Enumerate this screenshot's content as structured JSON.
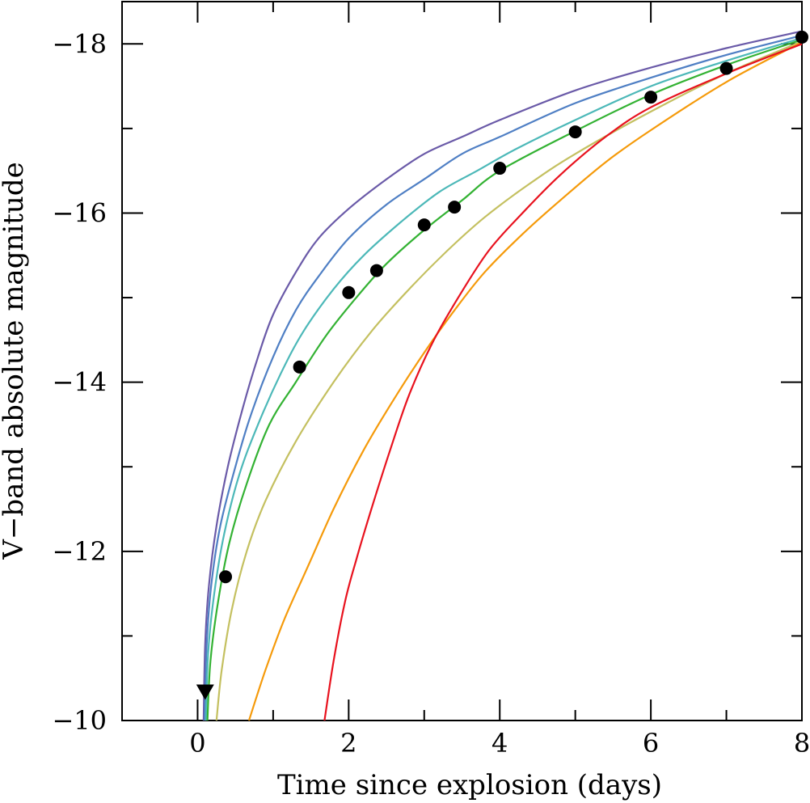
{
  "chart_data": {
    "type": "line",
    "xlabel": "Time since explosion (days)",
    "ylabel": "V−band absolute magnitude",
    "xlim": [
      -1,
      8
    ],
    "ylim": [
      -10,
      -18.5
    ],
    "y_inverted": true,
    "x_ticks": [
      0,
      2,
      4,
      6,
      8
    ],
    "x_tick_labels": [
      "0",
      "2",
      "4",
      "6",
      "8"
    ],
    "y_ticks": [
      -10,
      -12,
      -14,
      -16,
      -18
    ],
    "y_tick_labels": [
      "−10",
      "−12",
      "−14",
      "−16",
      "−18"
    ],
    "grid": false,
    "series": [
      {
        "color": "#6a5aa8",
        "points": [
          [
            0.08,
            -10.0
          ],
          [
            0.1,
            -10.9
          ],
          [
            0.15,
            -11.6
          ],
          [
            0.25,
            -12.3
          ],
          [
            0.4,
            -13.0
          ],
          [
            0.6,
            -13.7
          ],
          [
            0.8,
            -14.3
          ],
          [
            1.0,
            -14.8
          ],
          [
            1.3,
            -15.3
          ],
          [
            1.6,
            -15.7
          ],
          [
            2.0,
            -16.05
          ],
          [
            2.5,
            -16.4
          ],
          [
            3.0,
            -16.7
          ],
          [
            3.5,
            -16.9
          ],
          [
            4.0,
            -17.1
          ],
          [
            5.0,
            -17.45
          ],
          [
            6.0,
            -17.72
          ],
          [
            7.0,
            -17.95
          ],
          [
            8.0,
            -18.15
          ]
        ]
      },
      {
        "color": "#4f7fc4",
        "points": [
          [
            0.09,
            -10.0
          ],
          [
            0.12,
            -10.9
          ],
          [
            0.18,
            -11.6
          ],
          [
            0.3,
            -12.3
          ],
          [
            0.5,
            -13.0
          ],
          [
            0.7,
            -13.6
          ],
          [
            1.0,
            -14.3
          ],
          [
            1.3,
            -14.85
          ],
          [
            1.6,
            -15.25
          ],
          [
            2.0,
            -15.7
          ],
          [
            2.5,
            -16.1
          ],
          [
            3.0,
            -16.4
          ],
          [
            3.5,
            -16.7
          ],
          [
            4.0,
            -16.9
          ],
          [
            5.0,
            -17.3
          ],
          [
            6.0,
            -17.6
          ],
          [
            7.0,
            -17.87
          ],
          [
            8.0,
            -18.1
          ]
        ]
      },
      {
        "color": "#4cb8b8",
        "points": [
          [
            0.11,
            -10.0
          ],
          [
            0.14,
            -10.8
          ],
          [
            0.22,
            -11.5
          ],
          [
            0.35,
            -12.2
          ],
          [
            0.55,
            -12.9
          ],
          [
            0.8,
            -13.5
          ],
          [
            1.1,
            -14.1
          ],
          [
            1.4,
            -14.6
          ],
          [
            1.8,
            -15.1
          ],
          [
            2.2,
            -15.5
          ],
          [
            2.7,
            -15.9
          ],
          [
            3.2,
            -16.25
          ],
          [
            3.7,
            -16.5
          ],
          [
            4.2,
            -16.75
          ],
          [
            5.0,
            -17.1
          ],
          [
            6.0,
            -17.5
          ],
          [
            7.0,
            -17.8
          ],
          [
            8.0,
            -18.07
          ]
        ]
      },
      {
        "color": "#33b233",
        "points": [
          [
            0.13,
            -10.0
          ],
          [
            0.17,
            -10.7
          ],
          [
            0.27,
            -11.4
          ],
          [
            0.42,
            -12.1
          ],
          [
            0.65,
            -12.8
          ],
          [
            0.95,
            -13.5
          ],
          [
            1.3,
            -14.0
          ],
          [
            1.7,
            -14.55
          ],
          [
            2.1,
            -15.0
          ],
          [
            2.5,
            -15.4
          ],
          [
            3.0,
            -15.8
          ],
          [
            3.5,
            -16.15
          ],
          [
            4.0,
            -16.5
          ],
          [
            5.0,
            -16.97
          ],
          [
            6.0,
            -17.4
          ],
          [
            7.0,
            -17.75
          ],
          [
            8.0,
            -18.05
          ]
        ]
      },
      {
        "color": "#c4c060",
        "points": [
          [
            0.25,
            -10.0
          ],
          [
            0.32,
            -10.6
          ],
          [
            0.45,
            -11.3
          ],
          [
            0.65,
            -12.0
          ],
          [
            0.9,
            -12.6
          ],
          [
            1.3,
            -13.3
          ],
          [
            1.8,
            -14.0
          ],
          [
            2.3,
            -14.6
          ],
          [
            2.8,
            -15.1
          ],
          [
            3.3,
            -15.55
          ],
          [
            3.8,
            -15.95
          ],
          [
            4.4,
            -16.35
          ],
          [
            5.0,
            -16.7
          ],
          [
            6.0,
            -17.2
          ],
          [
            7.0,
            -17.65
          ],
          [
            8.0,
            -18.03
          ]
        ]
      },
      {
        "color": "#f59a0a",
        "points": [
          [
            0.68,
            -10.0
          ],
          [
            0.9,
            -10.6
          ],
          [
            1.15,
            -11.2
          ],
          [
            1.45,
            -11.8
          ],
          [
            1.8,
            -12.5
          ],
          [
            2.2,
            -13.2
          ],
          [
            2.6,
            -13.8
          ],
          [
            3.0,
            -14.35
          ],
          [
            3.4,
            -14.85
          ],
          [
            3.8,
            -15.3
          ],
          [
            4.3,
            -15.75
          ],
          [
            4.8,
            -16.15
          ],
          [
            5.4,
            -16.6
          ],
          [
            6.0,
            -16.98
          ],
          [
            7.0,
            -17.55
          ],
          [
            8.0,
            -18.02
          ]
        ]
      },
      {
        "color": "#e8121e",
        "points": [
          [
            1.68,
            -10.0
          ],
          [
            1.8,
            -10.7
          ],
          [
            1.95,
            -11.4
          ],
          [
            2.1,
            -11.9
          ],
          [
            2.3,
            -12.5
          ],
          [
            2.55,
            -13.2
          ],
          [
            2.8,
            -13.85
          ],
          [
            3.1,
            -14.45
          ],
          [
            3.45,
            -15.0
          ],
          [
            3.85,
            -15.55
          ],
          [
            4.3,
            -16.0
          ],
          [
            4.8,
            -16.45
          ],
          [
            5.4,
            -16.9
          ],
          [
            6.0,
            -17.25
          ],
          [
            7.0,
            -17.65
          ],
          [
            8.0,
            -18.0
          ]
        ]
      }
    ],
    "observations": [
      {
        "x": 0.37,
        "y": -11.7
      },
      {
        "x": 1.35,
        "y": -14.18
      },
      {
        "x": 2.0,
        "y": -15.06
      },
      {
        "x": 2.37,
        "y": -15.32
      },
      {
        "x": 3.0,
        "y": -15.86
      },
      {
        "x": 3.4,
        "y": -16.07
      },
      {
        "x": 4.0,
        "y": -16.53
      },
      {
        "x": 5.0,
        "y": -16.96
      },
      {
        "x": 6.0,
        "y": -17.37
      },
      {
        "x": 7.0,
        "y": -17.71
      },
      {
        "x": 8.0,
        "y": -18.08
      }
    ],
    "upper_limits": [
      {
        "x": 0.1,
        "y": -10.34
      }
    ]
  }
}
